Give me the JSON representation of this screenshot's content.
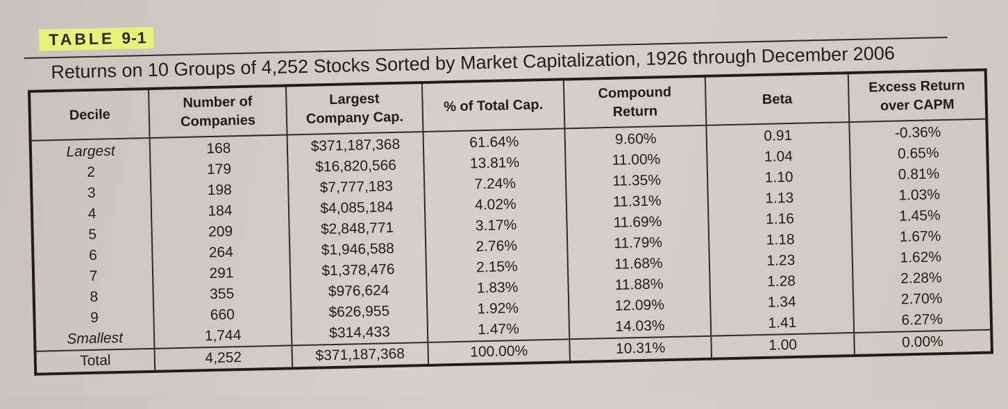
{
  "table_label": {
    "prefix": "TABLE",
    "number": "9-1"
  },
  "caption": "Returns on 10 Groups of 4,252 Stocks Sorted by Market Capitalization, 1926 through December 2006",
  "headers": {
    "decile": "Decile",
    "companies_1": "Number of",
    "companies_2": "Companies",
    "largest_1": "Largest",
    "largest_2": "Company Cap.",
    "pct_cap": "% of Total Cap.",
    "compound_1": "Compound",
    "compound_2": "Return",
    "beta": "Beta",
    "excess_1": "Excess Return",
    "excess_2": "over CAPM"
  },
  "rows": [
    {
      "decile": "Largest",
      "companies": "168",
      "largest_cap": "$371,187,368",
      "pct_cap": "61.64%",
      "compound": "9.60%",
      "beta": "0.91",
      "excess": "-0.36%"
    },
    {
      "decile": "2",
      "companies": "179",
      "largest_cap": "$16,820,566",
      "pct_cap": "13.81%",
      "compound": "11.00%",
      "beta": "1.04",
      "excess": "0.65%"
    },
    {
      "decile": "3",
      "companies": "198",
      "largest_cap": "$7,777,183",
      "pct_cap": "7.24%",
      "compound": "11.35%",
      "beta": "1.10",
      "excess": "0.81%"
    },
    {
      "decile": "4",
      "companies": "184",
      "largest_cap": "$4,085,184",
      "pct_cap": "4.02%",
      "compound": "11.31%",
      "beta": "1.13",
      "excess": "1.03%"
    },
    {
      "decile": "5",
      "companies": "209",
      "largest_cap": "$2,848,771",
      "pct_cap": "3.17%",
      "compound": "11.69%",
      "beta": "1.16",
      "excess": "1.45%"
    },
    {
      "decile": "6",
      "companies": "264",
      "largest_cap": "$1,946,588",
      "pct_cap": "2.76%",
      "compound": "11.79%",
      "beta": "1.18",
      "excess": "1.67%"
    },
    {
      "decile": "7",
      "companies": "291",
      "largest_cap": "$1,378,476",
      "pct_cap": "2.15%",
      "compound": "11.68%",
      "beta": "1.23",
      "excess": "1.62%"
    },
    {
      "decile": "8",
      "companies": "355",
      "largest_cap": "$976,624",
      "pct_cap": "1.83%",
      "compound": "11.88%",
      "beta": "1.28",
      "excess": "2.28%"
    },
    {
      "decile": "9",
      "companies": "660",
      "largest_cap": "$626,955",
      "pct_cap": "1.92%",
      "compound": "12.09%",
      "beta": "1.34",
      "excess": "2.70%"
    },
    {
      "decile": "Smallest",
      "companies": "1,744",
      "largest_cap": "$314,433",
      "pct_cap": "1.47%",
      "compound": "14.03%",
      "beta": "1.41",
      "excess": "6.27%"
    }
  ],
  "total": {
    "decile": "Total",
    "companies": "4,252",
    "largest_cap": "$371,187,368",
    "pct_cap": "100.00%",
    "compound": "10.31%",
    "beta": "1.00",
    "excess": "0.00%"
  }
}
